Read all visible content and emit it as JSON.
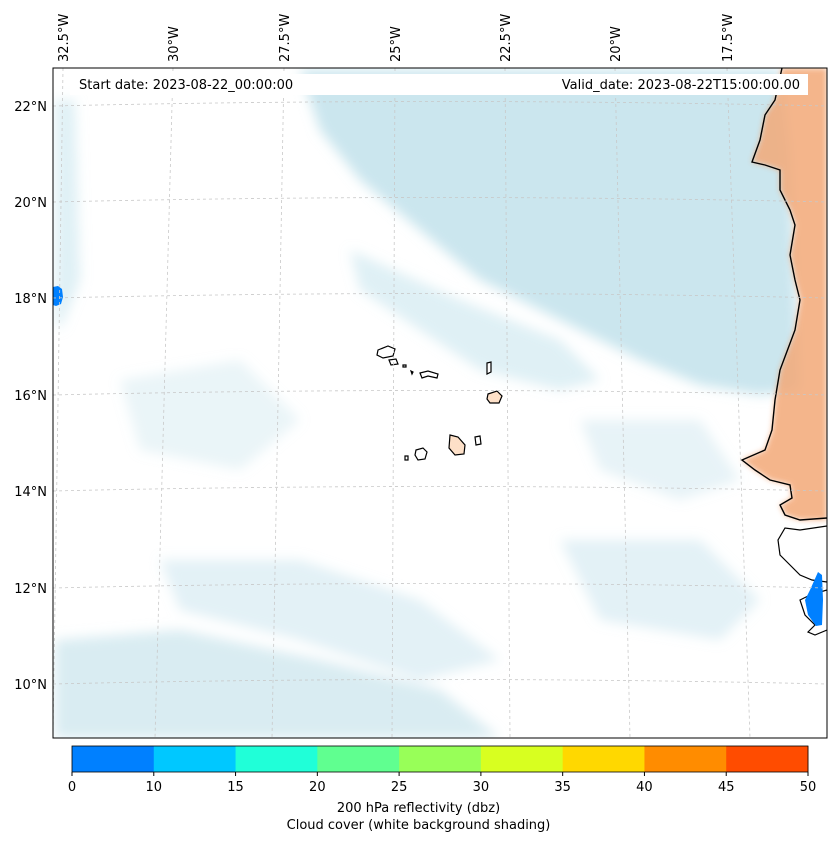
{
  "map": {
    "annotations": {
      "start_date": "Start date: 2023-08-22_00:00:00",
      "valid_date": "Valid_date: 2023-08-22T15:00:00.00"
    },
    "lon_labels": [
      "32.5°W",
      "30°W",
      "27.5°W",
      "25°W",
      "22.5°W",
      "20°W",
      "17.5°W"
    ],
    "lat_labels": [
      "22°N",
      "20°N",
      "18°N",
      "16°N",
      "14°N",
      "12°N",
      "10°N"
    ],
    "colorbar": {
      "ticks": [
        "0",
        "10",
        "15",
        "20",
        "25",
        "30",
        "35",
        "40",
        "45",
        "50"
      ],
      "colors": [
        "#0080ff",
        "#00c8ff",
        "#20ffd8",
        "#60ff90",
        "#98ff58",
        "#d8ff20",
        "#ffd800",
        "#ff8c00",
        "#ff4c00"
      ],
      "title_line1": "200 hPa reflectivity (dbz)",
      "title_line2": "Cloud cover (white background shading)"
    },
    "colors": {
      "cloud": "#b9dde8",
      "land_shade": "#f3a877",
      "coast": "#000000",
      "grid": "#c8c8c8"
    }
  }
}
